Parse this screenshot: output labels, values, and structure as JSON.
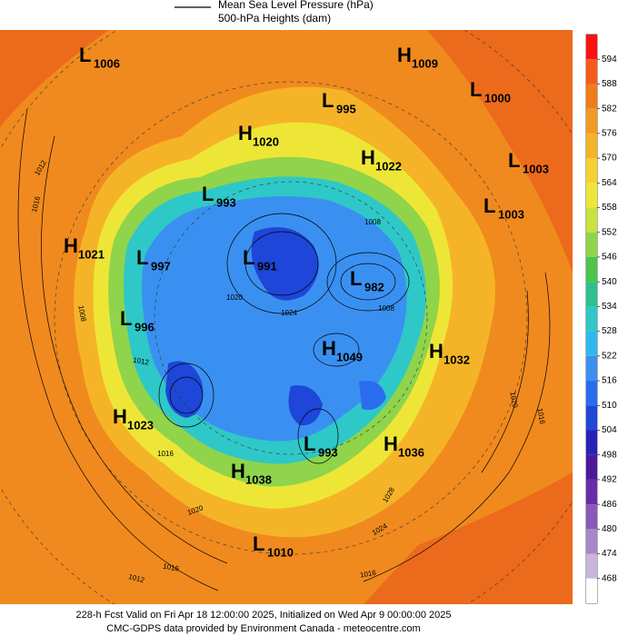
{
  "legend": {
    "line_label_1": "Mean Sea Level Pressure (hPa)",
    "line_label_2": "500-hPa Heights (dam)"
  },
  "centers": [
    {
      "letter": "L",
      "value": 1006
    },
    {
      "letter": "H",
      "value": 1009
    },
    {
      "letter": "L",
      "value": 995
    },
    {
      "letter": "L",
      "value": 1000
    },
    {
      "letter": "H",
      "value": 1020
    },
    {
      "letter": "H",
      "value": 1022
    },
    {
      "letter": "L",
      "value": 1003
    },
    {
      "letter": "L",
      "value": 993
    },
    {
      "letter": "L",
      "value": 1003
    },
    {
      "letter": "H",
      "value": 1021
    },
    {
      "letter": "L",
      "value": 997
    },
    {
      "letter": "L",
      "value": 991
    },
    {
      "letter": "L",
      "value": 982
    },
    {
      "letter": "L",
      "value": 996
    },
    {
      "letter": "H",
      "value": 1049
    },
    {
      "letter": "H",
      "value": 1032
    },
    {
      "letter": "H",
      "value": 1023
    },
    {
      "letter": "L",
      "value": 993
    },
    {
      "letter": "H",
      "value": 1036
    },
    {
      "letter": "H",
      "value": 1038
    },
    {
      "letter": "L",
      "value": 1010
    }
  ],
  "isobar_labels": [
    1012,
    1016,
    1008,
    1012,
    1016,
    1020,
    1016,
    1012,
    1020,
    1024,
    1008,
    1008,
    1028,
    1024,
    1016,
    1020,
    1016
  ],
  "colorbar": {
    "ticks": [
      594,
      588,
      582,
      576,
      570,
      564,
      558,
      552,
      546,
      540,
      534,
      528,
      522,
      516,
      510,
      504,
      498,
      492,
      486,
      480,
      474,
      468
    ],
    "colors": [
      "#ff1010",
      "#f55a1a",
      "#f07c1a",
      "#f29a22",
      "#f5b427",
      "#f6d030",
      "#eee636",
      "#c8e23e",
      "#8fd44a",
      "#4dc24c",
      "#2fc08c",
      "#2ec8c8",
      "#30b8ee",
      "#3a90f0",
      "#2a6cf0",
      "#1e46d8",
      "#2a22b8",
      "#4a1a9a",
      "#6a2ca8",
      "#8a58b8",
      "#a888c8",
      "#c8b4dc",
      "#ffffff"
    ]
  },
  "footer": {
    "line_1": "228-h Fcst Valid on Fri Apr 18 12:00:00 2025, Initialized on Wed Apr  9 00:00:00 2025",
    "line_2": "CMC-GDPS data provided by Environment Canada - meteocentre.com"
  }
}
